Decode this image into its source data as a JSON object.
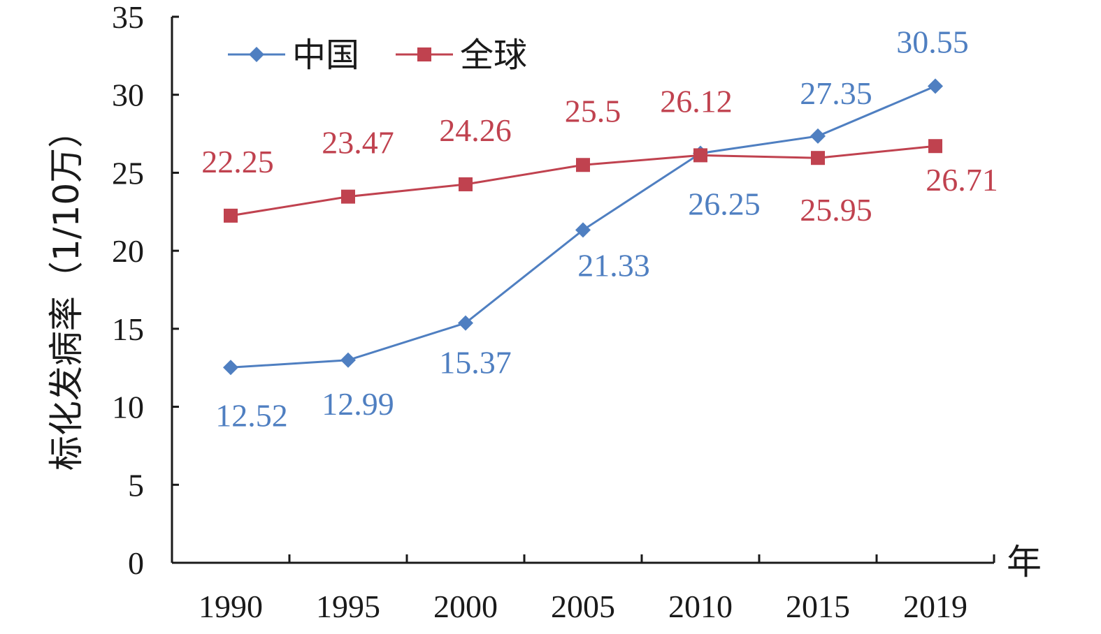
{
  "chart_data": {
    "type": "line",
    "x": [
      "1990",
      "1995",
      "2000",
      "2005",
      "2010",
      "2015",
      "2019"
    ],
    "series": [
      {
        "name": "中国",
        "values": [
          12.52,
          12.99,
          15.37,
          21.33,
          26.25,
          27.35,
          30.55
        ],
        "color": "#4f7fc1",
        "marker": "diamond"
      },
      {
        "name": "全球",
        "values": [
          22.25,
          23.47,
          24.26,
          25.5,
          26.12,
          25.95,
          26.71
        ],
        "color": "#c0424f",
        "marker": "square"
      }
    ],
    "data_labels": {
      "中国": [
        "12.52",
        "12.99",
        "15.37",
        "21.33",
        "26.25",
        "27.35",
        "30.55"
      ],
      "全球": [
        "22.25",
        "23.47",
        "24.26",
        "25.5",
        "26.12",
        "25.95",
        "26.71"
      ]
    },
    "ylabel": "标化发病率（1/10万）",
    "xlabel": "年",
    "ylim": [
      0,
      35
    ],
    "yticks": [
      "0",
      "5",
      "10",
      "15",
      "20",
      "25",
      "30",
      "35"
    ],
    "legend_position": "top-left",
    "grid": false
  }
}
